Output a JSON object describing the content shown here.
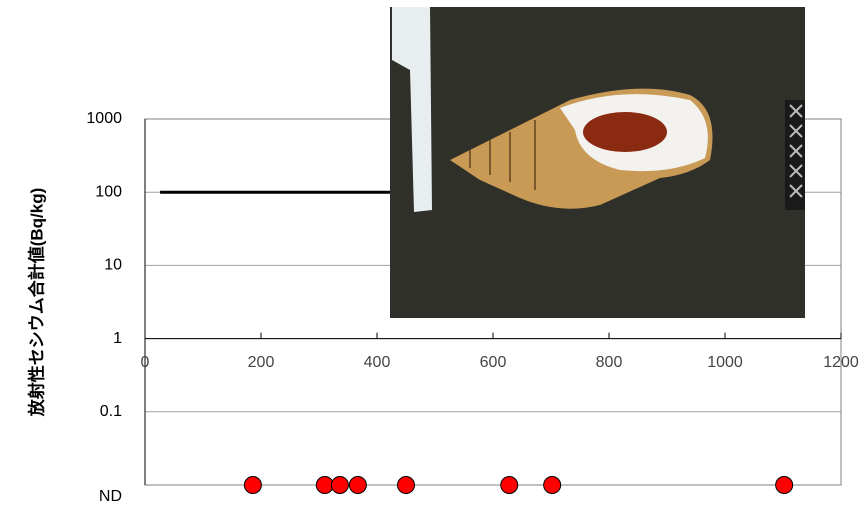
{
  "chart_data": {
    "type": "scatter",
    "y_label": "放射性セシウム合計値(Bq/kg)",
    "log_y": true,
    "grid": true,
    "xlim": [
      0,
      1200
    ],
    "xticks": [
      0,
      200,
      400,
      600,
      800,
      1000,
      1200
    ],
    "ylim": [
      0.01,
      1000
    ],
    "yticks": [
      {
        "value": 0.01,
        "label": "ND"
      },
      0.1,
      1,
      10,
      100,
      1000
    ],
    "reference_line": {
      "x": [
        26,
        700
      ],
      "values": [
        100,
        100
      ],
      "color": "#000000"
    },
    "series": [
      {
        "color": "#ff0000",
        "x": [
          186,
          310,
          336,
          367,
          450,
          628,
          702,
          1102
        ],
        "values": [
          0.01,
          0.01,
          0.01,
          0.01,
          0.01,
          0.01,
          0.01,
          0.01
        ]
      }
    ]
  }
}
